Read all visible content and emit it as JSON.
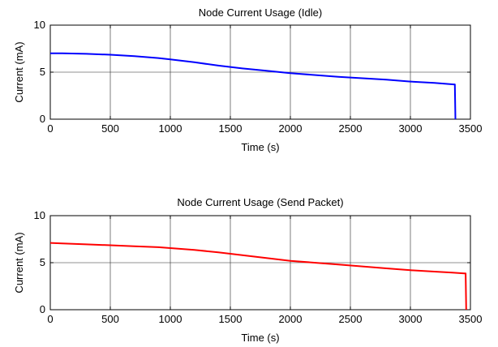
{
  "chart_data": [
    {
      "type": "line",
      "title": "Node Current Usage (Idle)",
      "xlabel": "Time (s)",
      "ylabel": "Current (mA)",
      "xlim": [
        0,
        3500
      ],
      "ylim": [
        0,
        10
      ],
      "xticks": [
        0,
        500,
        1000,
        1500,
        2000,
        2500,
        3000,
        3500
      ],
      "yticks": [
        0,
        5,
        10
      ],
      "grid": true,
      "series": [
        {
          "color": "#0000ff",
          "x": [
            0,
            100,
            300,
            500,
            700,
            900,
            1000,
            1200,
            1400,
            1600,
            1800,
            2000,
            2200,
            2400,
            2600,
            2800,
            3000,
            3200,
            3360,
            3370,
            3375
          ],
          "y": [
            7.0,
            7.0,
            6.95,
            6.85,
            6.7,
            6.5,
            6.35,
            6.05,
            5.7,
            5.4,
            5.15,
            4.9,
            4.7,
            4.5,
            4.35,
            4.2,
            4.0,
            3.85,
            3.7,
            3.7,
            0
          ]
        }
      ]
    },
    {
      "type": "line",
      "title": "Node Current Usage (Send Packet)",
      "xlabel": "Time (s)",
      "ylabel": "Current (mA)",
      "xlim": [
        0,
        3500
      ],
      "ylim": [
        0,
        10
      ],
      "xticks": [
        0,
        500,
        1000,
        1500,
        2000,
        2500,
        3000,
        3500
      ],
      "yticks": [
        0,
        5,
        10
      ],
      "grid": true,
      "series": [
        {
          "color": "#ff0000",
          "x": [
            0,
            100,
            300,
            500,
            700,
            900,
            1000,
            1200,
            1400,
            1600,
            1800,
            2000,
            2200,
            2400,
            2600,
            2800,
            3000,
            3200,
            3350,
            3450,
            3460,
            3465
          ],
          "y": [
            7.1,
            7.05,
            6.95,
            6.85,
            6.75,
            6.65,
            6.55,
            6.35,
            6.1,
            5.8,
            5.5,
            5.2,
            5.0,
            4.8,
            4.6,
            4.4,
            4.2,
            4.05,
            3.95,
            3.85,
            3.85,
            0
          ]
        }
      ]
    }
  ]
}
